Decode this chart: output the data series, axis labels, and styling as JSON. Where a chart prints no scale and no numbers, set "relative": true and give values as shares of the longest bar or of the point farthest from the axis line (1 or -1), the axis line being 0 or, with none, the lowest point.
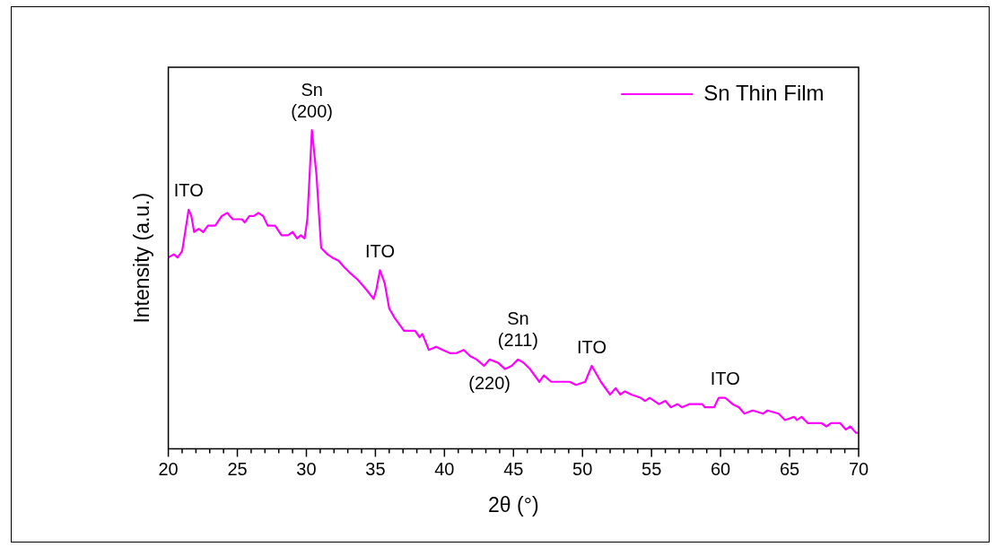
{
  "chart_data": {
    "type": "line",
    "relative": true,
    "xlabel": "2θ (°)",
    "ylabel": "Intensity (a.u.)",
    "legend": "top right",
    "grid": false,
    "marker": "none",
    "line_style": "solid",
    "xlim": [
      20,
      70
    ],
    "xticks": [
      20,
      {
        "value": 21,
        "label": null
      },
      {
        "value": 22,
        "label": null
      },
      {
        "value": 23,
        "label": null
      },
      {
        "value": 24,
        "label": null
      },
      25,
      {
        "value": 26,
        "label": null
      },
      {
        "value": 27,
        "label": null
      },
      {
        "value": 28,
        "label": null
      },
      {
        "value": 29,
        "label": null
      },
      30,
      {
        "value": 31,
        "label": null
      },
      {
        "value": 32,
        "label": null
      },
      {
        "value": 33,
        "label": null
      },
      {
        "value": 34,
        "label": null
      },
      35,
      {
        "value": 36,
        "label": null
      },
      {
        "value": 37,
        "label": null
      },
      {
        "value": 38,
        "label": null
      },
      {
        "value": 39,
        "label": null
      },
      40,
      {
        "value": 41,
        "label": null
      },
      {
        "value": 42,
        "label": null
      },
      {
        "value": 43,
        "label": null
      },
      {
        "value": 44,
        "label": null
      },
      45,
      {
        "value": 46,
        "label": null
      },
      {
        "value": 47,
        "label": null
      },
      {
        "value": 48,
        "label": null
      },
      {
        "value": 49,
        "label": null
      },
      50,
      {
        "value": 51,
        "label": null
      },
      {
        "value": 52,
        "label": null
      },
      {
        "value": 53,
        "label": null
      },
      {
        "value": 54,
        "label": null
      },
      55,
      {
        "value": 56,
        "label": null
      },
      {
        "value": 57,
        "label": null
      },
      {
        "value": 58,
        "label": null
      },
      {
        "value": 59,
        "label": null
      },
      60,
      {
        "value": 61,
        "label": null
      },
      {
        "value": 62,
        "label": null
      },
      {
        "value": 63,
        "label": null
      },
      {
        "value": 64,
        "label": null
      },
      65,
      {
        "value": 66,
        "label": null
      },
      {
        "value": 67,
        "label": null
      },
      {
        "value": 68,
        "label": null
      },
      {
        "value": 69,
        "label": null
      },
      70
    ],
    "series": [
      {
        "name": "Sn Thin Film",
        "color": "#ff00ff",
        "x": [
          20.0,
          20.4,
          20.67,
          21.0,
          21.33,
          21.47,
          21.67,
          21.87,
          22.2,
          22.53,
          22.87,
          23.4,
          23.87,
          24.27,
          24.67,
          25.33,
          25.53,
          25.87,
          26.2,
          26.53,
          26.87,
          27.2,
          27.73,
          28.2,
          28.67,
          29.0,
          29.33,
          29.6,
          29.87,
          30.07,
          30.4,
          30.73,
          31.07,
          31.53,
          31.87,
          32.33,
          32.73,
          33.2,
          33.73,
          34.33,
          34.87,
          35.07,
          35.33,
          35.67,
          36.0,
          36.4,
          37.07,
          37.67,
          37.87,
          38.2,
          38.4,
          38.87,
          39.4,
          39.87,
          40.4,
          40.87,
          41.4,
          41.87,
          42.33,
          42.87,
          43.27,
          43.87,
          44.4,
          44.87,
          45.33,
          45.73,
          46.2,
          46.87,
          47.2,
          47.73,
          48.4,
          49.07,
          49.53,
          50.2,
          50.67,
          51.33,
          52.0,
          52.4,
          52.73,
          53.07,
          53.53,
          54.2,
          54.53,
          54.87,
          55.53,
          56.0,
          56.4,
          56.87,
          57.2,
          57.73,
          58.2,
          58.67,
          58.87,
          59.53,
          59.87,
          60.33,
          60.87,
          61.33,
          61.73,
          62.33,
          63.07,
          63.4,
          64.2,
          64.67,
          65.33,
          65.53,
          65.87,
          66.33,
          66.87,
          67.33,
          67.67,
          68.0,
          68.33,
          68.67,
          69.07,
          69.4,
          69.8,
          70.0
        ],
        "values": [
          0.6,
          0.61,
          0.6,
          0.62,
          0.71,
          0.75,
          0.73,
          0.68,
          0.69,
          0.68,
          0.7,
          0.7,
          0.73,
          0.74,
          0.72,
          0.72,
          0.71,
          0.73,
          0.73,
          0.74,
          0.73,
          0.7,
          0.7,
          0.67,
          0.67,
          0.68,
          0.66,
          0.67,
          0.66,
          0.72,
          1.0,
          0.86,
          0.63,
          0.61,
          0.6,
          0.59,
          0.57,
          0.55,
          0.53,
          0.5,
          0.47,
          0.5,
          0.56,
          0.52,
          0.44,
          0.41,
          0.37,
          0.37,
          0.37,
          0.35,
          0.36,
          0.31,
          0.32,
          0.31,
          0.3,
          0.3,
          0.31,
          0.29,
          0.28,
          0.26,
          0.28,
          0.27,
          0.25,
          0.26,
          0.28,
          0.27,
          0.25,
          0.21,
          0.23,
          0.21,
          0.21,
          0.21,
          0.2,
          0.21,
          0.26,
          0.21,
          0.17,
          0.19,
          0.17,
          0.18,
          0.17,
          0.16,
          0.15,
          0.16,
          0.14,
          0.15,
          0.13,
          0.14,
          0.13,
          0.14,
          0.14,
          0.14,
          0.13,
          0.13,
          0.16,
          0.16,
          0.14,
          0.13,
          0.11,
          0.12,
          0.11,
          0.12,
          0.11,
          0.09,
          0.1,
          0.09,
          0.1,
          0.08,
          0.08,
          0.08,
          0.07,
          0.08,
          0.08,
          0.08,
          0.06,
          0.07,
          0.05,
          0.05
        ]
      }
    ],
    "annotations": [
      {
        "text": "ITO",
        "x": 21.47,
        "y": 0.75
      },
      {
        "text": "Sn\n(200)",
        "x": 30.4,
        "y": 1.0
      },
      {
        "text": "ITO",
        "x": 35.33,
        "y": 0.56
      },
      {
        "text": "Sn\n(211)",
        "x": 45.33,
        "y": 0.28
      },
      {
        "text": "(220)",
        "x": 43.27,
        "y": 0.28
      },
      {
        "text": "ITO",
        "x": 50.67,
        "y": 0.26
      },
      {
        "text": "ITO",
        "x": 60.33,
        "y": 0.16
      }
    ]
  }
}
